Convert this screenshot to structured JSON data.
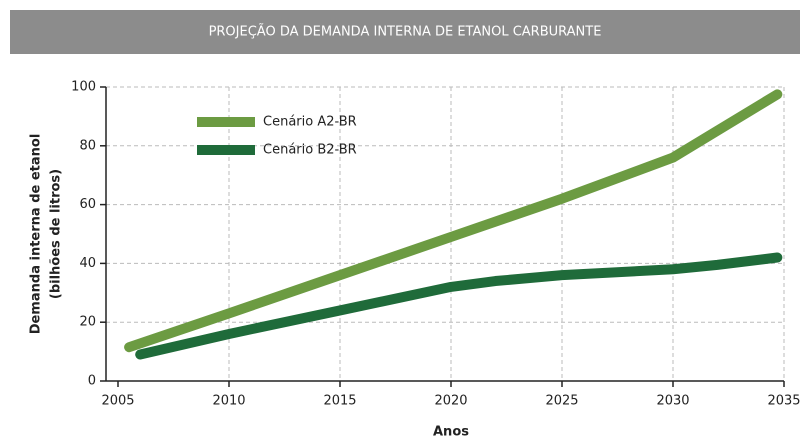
{
  "chart_data": {
    "type": "line",
    "title": "PROJEÇÃO DA DEMANDA INTERNA DE ETANOL CARBURANTE",
    "x_label": "Anos",
    "y_label": [
      "Demanda interna de etanol",
      "(bilhões de litros)"
    ],
    "xlim": [
      2005,
      2035
    ],
    "xticks": [
      2005,
      2010,
      2015,
      2020,
      2025,
      2030,
      2035
    ],
    "ylim": [
      0,
      100
    ],
    "yticks": [
      0,
      20,
      40,
      60,
      80,
      100
    ],
    "grid": true,
    "legend": "upper left",
    "series": [
      {
        "name": "Cenário A2-BR",
        "color": "#6c9b42",
        "x": [
          2005.5,
          2010,
          2015,
          2020,
          2025,
          2030,
          2034.7
        ],
        "values": [
          11.5,
          23,
          36,
          49,
          62,
          76,
          97.5
        ]
      },
      {
        "name": "Cenário B2-BR",
        "color": "#1f6b3a",
        "x": [
          2006,
          2010,
          2015,
          2020,
          2022,
          2025,
          2030,
          2032,
          2034.7
        ],
        "values": [
          9,
          16,
          24,
          32,
          34,
          36,
          38,
          39.5,
          42
        ]
      }
    ]
  }
}
